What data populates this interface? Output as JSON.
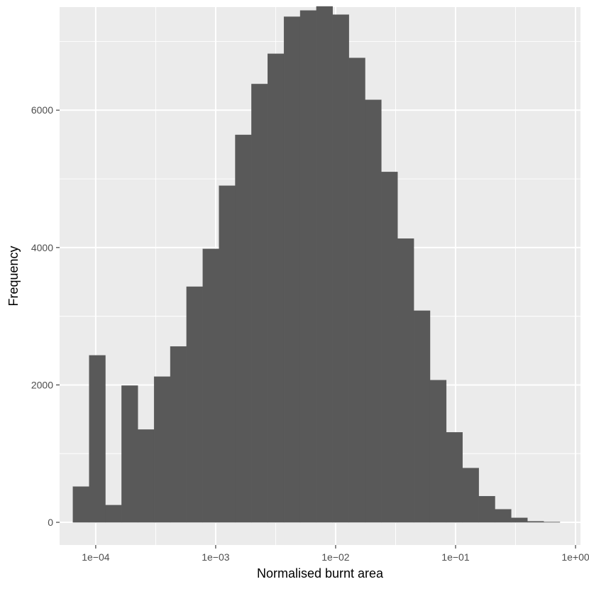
{
  "colors": {
    "panel_background": "#EBEBEB",
    "grid_major": "#FFFFFF",
    "bar_fill": "#595959",
    "tick_text": "#4D4D4D",
    "tick_mark": "#333333"
  },
  "chart_data": {
    "type": "bar",
    "subtype": "histogram",
    "title": "",
    "xlabel": "Normalised burnt area",
    "ylabel": "Frequency",
    "x_scale": "log10",
    "xlim": [
      5e-05,
      1.1
    ],
    "ylim": [
      -330,
      7500
    ],
    "x_ticks": [
      {
        "value": 0.0001,
        "label": "1e−04"
      },
      {
        "value": 0.001,
        "label": "1e−03"
      },
      {
        "value": 0.01,
        "label": "1e−02"
      },
      {
        "value": 0.1,
        "label": "1e−01"
      },
      {
        "value": 1,
        "label": "1e+00"
      }
    ],
    "y_ticks": [
      {
        "value": 0,
        "label": "0"
      },
      {
        "value": 2000,
        "label": "2000"
      },
      {
        "value": 4000,
        "label": "4000"
      },
      {
        "value": 6000,
        "label": "6000"
      }
    ],
    "grid": true,
    "bins_log10_start": -4.19,
    "bins_log10_width": 0.13533,
    "values": [
      520,
      2430,
      250,
      1990,
      1350,
      2120,
      2560,
      3430,
      3980,
      4900,
      5640,
      6380,
      6820,
      7360,
      7450,
      7510,
      7390,
      6760,
      6150,
      5100,
      4130,
      3080,
      2070,
      1310,
      790,
      380,
      190,
      65,
      15,
      5
    ]
  }
}
